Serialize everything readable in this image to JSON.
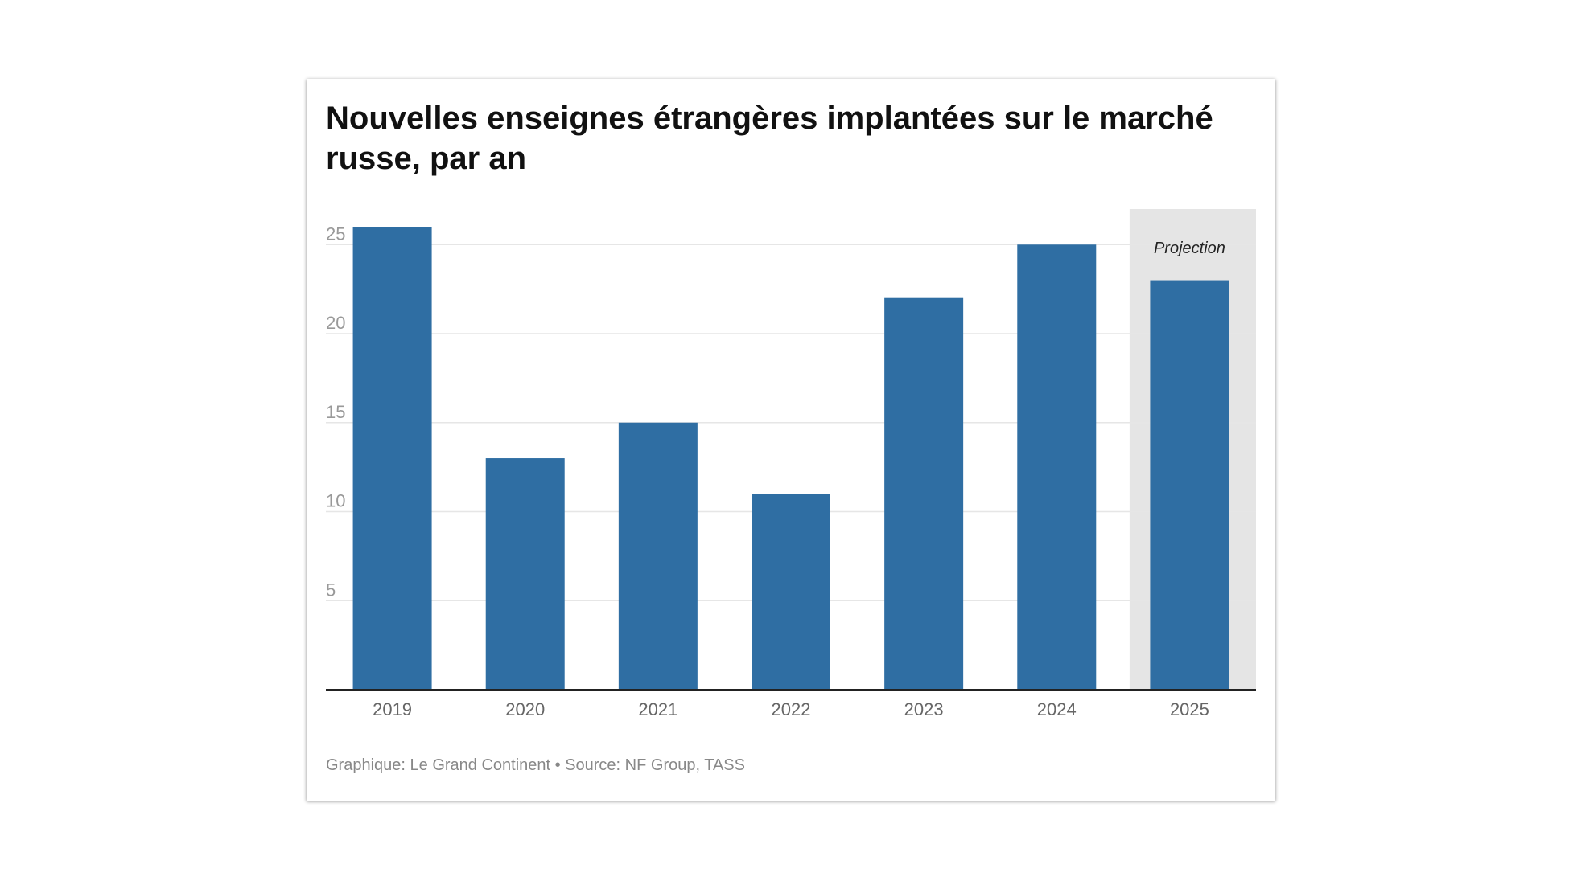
{
  "chart_data": {
    "type": "bar",
    "title": "Nouvelles enseignes étrangères implantées sur le marché russe, par an",
    "categories": [
      "2019",
      "2020",
      "2021",
      "2022",
      "2023",
      "2024",
      "2025"
    ],
    "values": [
      26,
      13,
      15,
      11,
      22,
      25,
      23
    ],
    "ylim": [
      0,
      27
    ],
    "yticks": [
      5,
      10,
      15,
      20,
      25
    ],
    "grid": true,
    "bar_color": "#2f6ea3",
    "highlight": {
      "category": "2025",
      "label": "Projection",
      "band_color": "#e5e5e5"
    }
  },
  "footer": {
    "source": "Graphique: Le Grand Continent • Source: NF Group, TASS"
  }
}
